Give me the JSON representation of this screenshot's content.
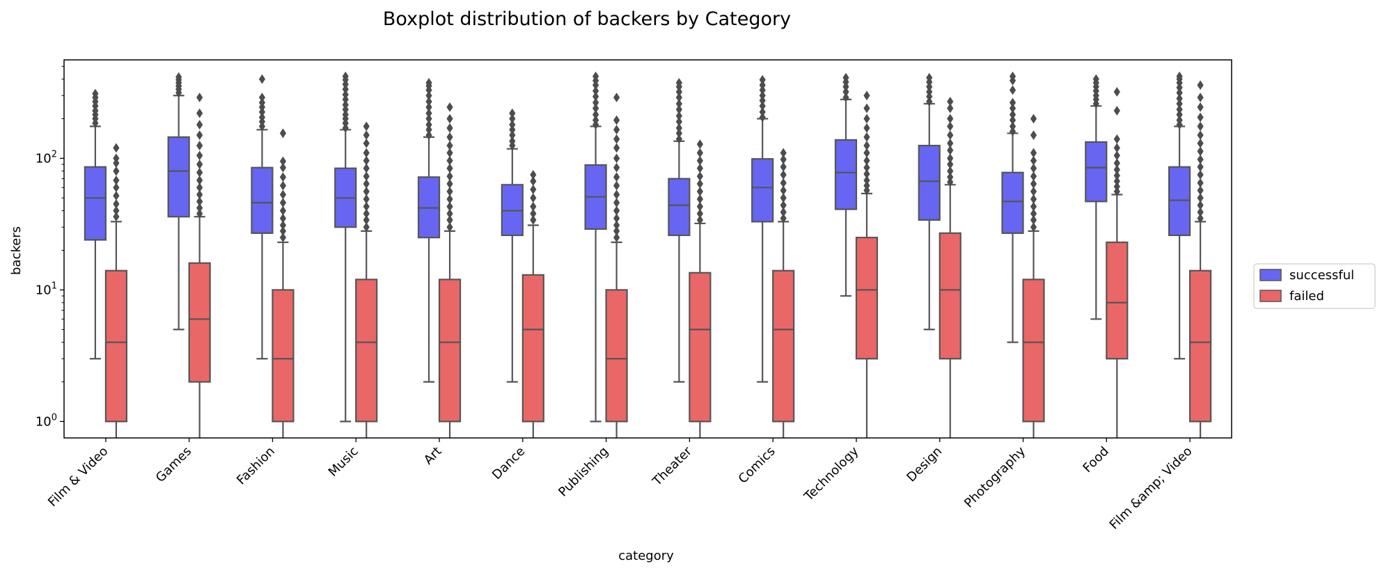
{
  "chart_data": {
    "type": "box",
    "title": "Boxplot distribution of backers by Category",
    "xlabel": "category",
    "ylabel": "backers",
    "yscale": "log",
    "ylim": [
      0.75,
      560
    ],
    "yticks": [
      {
        "value": 1,
        "base": "10",
        "exp": "0"
      },
      {
        "value": 10,
        "base": "10",
        "exp": "1"
      },
      {
        "value": 100,
        "base": "10",
        "exp": "2"
      }
    ],
    "legend": {
      "position": "center-right outside",
      "entries": [
        "successful",
        "failed"
      ]
    },
    "colors": {
      "successful": "#6666f2",
      "failed": "#ea6767",
      "line": "#555555"
    },
    "categories": [
      "Film & Video",
      "Games",
      "Fashion",
      "Music",
      "Art",
      "Dance",
      "Publishing",
      "Theater",
      "Comics",
      "Technology",
      "Design",
      "Photography",
      "Food",
      "Film &amp; Video"
    ],
    "series": [
      {
        "name": "successful",
        "stats": [
          {
            "whislo": 3,
            "q1": 24,
            "med": 50,
            "q3": 86,
            "whishi": 175,
            "fliers": [
              185,
              200,
              215,
              230,
              250,
              270,
              290,
              310
            ]
          },
          {
            "whislo": 5,
            "q1": 36,
            "med": 80,
            "q3": 145,
            "whishi": 300,
            "fliers": [
              315,
              335,
              355,
              375,
              395,
              415
            ]
          },
          {
            "whislo": 3,
            "q1": 27,
            "med": 46,
            "q3": 85,
            "whishi": 165,
            "fliers": [
              175,
              190,
              205,
              225,
              245,
              265,
              290,
              400
            ]
          },
          {
            "whislo": 1,
            "q1": 30,
            "med": 50,
            "q3": 84,
            "whishi": 165,
            "fliers": [
              170,
              185,
              200,
              215,
              235,
              255,
              280,
              305,
              335,
              365,
              395,
              420
            ]
          },
          {
            "whislo": 2,
            "q1": 25,
            "med": 42,
            "q3": 72,
            "whishi": 145,
            "fliers": [
              150,
              165,
              180,
              200,
              220,
              245,
              270,
              300,
              330,
              355,
              375
            ]
          },
          {
            "whislo": 2,
            "q1": 26,
            "med": 40,
            "q3": 63,
            "whishi": 118,
            "fliers": [
              125,
              135,
              150,
              165,
              180,
              200,
              220
            ]
          },
          {
            "whislo": 1,
            "q1": 29,
            "med": 51,
            "q3": 89,
            "whishi": 175,
            "fliers": [
              180,
              195,
              215,
              240,
              265,
              295,
              325,
              360,
              390,
              420
            ]
          },
          {
            "whislo": 2,
            "q1": 26,
            "med": 44,
            "q3": 70,
            "whishi": 135,
            "fliers": [
              140,
              155,
              170,
              190,
              210,
              235,
              260,
              290,
              320,
              350,
              375
            ]
          },
          {
            "whislo": 2,
            "q1": 33,
            "med": 60,
            "q3": 99,
            "whishi": 200,
            "fliers": [
              205,
              225,
              250,
              275,
              300,
              330,
              360,
              395
            ]
          },
          {
            "whislo": 9,
            "q1": 41,
            "med": 78,
            "q3": 138,
            "whishi": 280,
            "fliers": [
              290,
              320,
              350,
              380,
              410
            ]
          },
          {
            "whislo": 5,
            "q1": 34,
            "med": 67,
            "q3": 125,
            "whishi": 260,
            "fliers": [
              270,
              295,
              320,
              350,
              380,
              410
            ]
          },
          {
            "whislo": 4,
            "q1": 27,
            "med": 47,
            "q3": 78,
            "whishi": 155,
            "fliers": [
              160,
              175,
              195,
              215,
              240,
              265,
              330,
              390,
              420
            ]
          },
          {
            "whislo": 6,
            "q1": 47,
            "med": 85,
            "q3": 133,
            "whishi": 250,
            "fliers": [
              260,
              280,
              300,
              325,
              350,
              375,
              400
            ]
          },
          {
            "whislo": 3,
            "q1": 26,
            "med": 48,
            "q3": 86,
            "whishi": 175,
            "fliers": [
              180,
              195,
              215,
              235,
              260,
              285,
              315,
              345,
              375,
              400,
              420
            ]
          }
        ]
      },
      {
        "name": "failed",
        "stats": [
          {
            "whislo": 0.5,
            "q1": 1,
            "med": 4,
            "q3": 14,
            "whishi": 33,
            "fliers": [
              36,
              40,
              45,
              52,
              60,
              68,
              80,
              92,
              100,
              120
            ]
          },
          {
            "whislo": 0.5,
            "q1": 2,
            "med": 6,
            "q3": 16,
            "whishi": 36,
            "fliers": [
              38,
              42,
              47,
              53,
              60,
              68,
              78,
              90,
              105,
              125,
              150,
              180,
              220,
              290
            ]
          },
          {
            "whislo": 0.5,
            "q1": 1,
            "med": 3,
            "q3": 10,
            "whishi": 23,
            "fliers": [
              25,
              28,
              31,
              35,
              40,
              46,
              53,
              62,
              72,
              85,
              95,
              155
            ]
          },
          {
            "whislo": 0.5,
            "q1": 1,
            "med": 4,
            "q3": 12,
            "whishi": 28,
            "fliers": [
              30,
              34,
              38,
              43,
              49,
              56,
              64,
              73,
              84,
              96,
              110,
              130,
              150,
              175
            ]
          },
          {
            "whislo": 0.5,
            "q1": 1,
            "med": 4,
            "q3": 12,
            "whishi": 28,
            "fliers": [
              30,
              34,
              38,
              43,
              49,
              56,
              64,
              73,
              84,
              96,
              110,
              125,
              145,
              170,
              200,
              245
            ]
          },
          {
            "whislo": 0.5,
            "q1": 1,
            "med": 5,
            "q3": 13,
            "whishi": 31,
            "fliers": [
              34,
              38,
              43,
              50,
              58,
              67,
              75
            ]
          },
          {
            "whislo": 0.5,
            "q1": 1,
            "med": 3,
            "q3": 10,
            "whishi": 23,
            "fliers": [
              25,
              28,
              31,
              35,
              40,
              46,
              53,
              62,
              72,
              85,
              100,
              120,
              140,
              165,
              195,
              290
            ]
          },
          {
            "whislo": 0.5,
            "q1": 1,
            "med": 5,
            "q3": 13.5,
            "whishi": 32,
            "fliers": [
              34,
              38,
              43,
              49,
              56,
              64,
              73,
              84,
              96,
              110,
              128
            ]
          },
          {
            "whislo": 0.5,
            "q1": 1,
            "med": 5,
            "q3": 14,
            "whishi": 33,
            "fliers": [
              35,
              39,
              44,
              50,
              57,
              65,
              75,
              86,
              98,
              110
            ]
          },
          {
            "whislo": 0.5,
            "q1": 3,
            "med": 10,
            "q3": 25,
            "whishi": 54,
            "fliers": [
              57,
              62,
              68,
              76,
              85,
              96,
              110,
              125,
              145,
              170,
              200,
              240,
              300
            ]
          },
          {
            "whislo": 0.5,
            "q1": 3,
            "med": 10,
            "q3": 27,
            "whishi": 63,
            "fliers": [
              66,
              72,
              80,
              90,
              100,
              115,
              130,
              150,
              175,
              200,
              240,
              270
            ]
          },
          {
            "whislo": 0.5,
            "q1": 1,
            "med": 4,
            "q3": 12,
            "whishi": 28,
            "fliers": [
              30,
              34,
              38,
              43,
              49,
              56,
              64,
              73,
              84,
              96,
              110,
              150,
              200
            ]
          },
          {
            "whislo": 0.5,
            "q1": 3,
            "med": 8,
            "q3": 23,
            "whishi": 53,
            "fliers": [
              56,
              61,
              67,
              74,
              82,
              92,
              105,
              120,
              140,
              230,
              320
            ]
          },
          {
            "whislo": 0.5,
            "q1": 1,
            "med": 4,
            "q3": 14,
            "whishi": 33,
            "fliers": [
              35,
              39,
              44,
              50,
              57,
              65,
              75,
              86,
              98,
              113,
              130,
              150,
              175,
              205,
              245,
              290,
              360
            ]
          }
        ]
      }
    ]
  }
}
